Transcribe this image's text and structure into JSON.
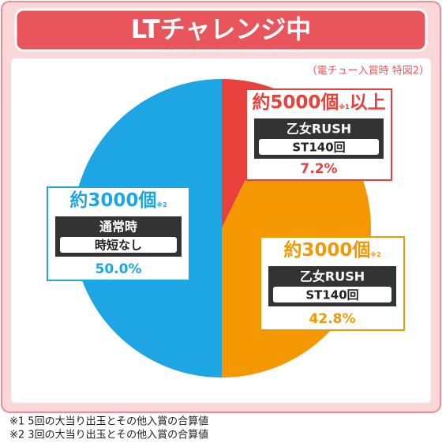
{
  "chart_data": {
    "type": "pie",
    "title": "LTチャレンジ中",
    "subtitle": "（電チュー入賞時 特図2）",
    "categories": [
      "約5000個",
      "約3000個",
      "約3000個"
    ],
    "values": [
      7.2,
      42.8,
      50.0
    ],
    "value_labels": [
      "7.2%",
      "42.8%",
      "50.0%"
    ],
    "colors": [
      "#e8413c",
      "#f39800",
      "#1ea5e3"
    ],
    "callouts": [
      {
        "note": "※1",
        "suffix": "以上",
        "mode": "乙女RUSH",
        "detail": "ST140回"
      },
      {
        "note": "※2",
        "mode": "乙女RUSH",
        "detail": "ST140回"
      },
      {
        "note": "※2",
        "mode": "通常時",
        "detail": "時短なし"
      }
    ],
    "footnotes": [
      "※1 5回の大当り出玉とその他入賞の合算値",
      "※2 3回の大当り出玉とその他入賞の合算値"
    ]
  }
}
